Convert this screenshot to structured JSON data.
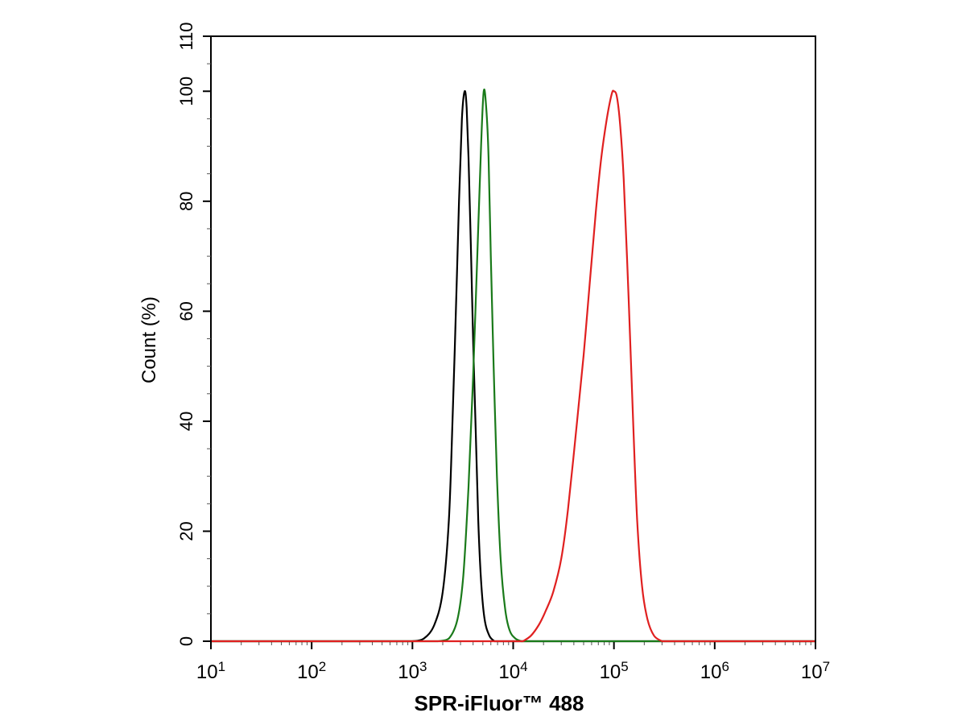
{
  "chart_data": {
    "type": "line",
    "title": "",
    "xlabel": "SPR-iFluor™ 488",
    "ylabel": "Count  (%)",
    "xscale": "log",
    "xlim": [
      10,
      10000000
    ],
    "ylim": [
      0,
      110
    ],
    "xticks": [
      {
        "value": 10,
        "base": "10",
        "exp": "1"
      },
      {
        "value": 100,
        "base": "10",
        "exp": "2"
      },
      {
        "value": 1000,
        "base": "10",
        "exp": "3"
      },
      {
        "value": 10000,
        "base": "10",
        "exp": "4"
      },
      {
        "value": 100000,
        "base": "10",
        "exp": "5"
      },
      {
        "value": 1000000,
        "base": "10",
        "exp": "6"
      },
      {
        "value": 10000000,
        "base": "10",
        "exp": "7"
      }
    ],
    "yticks": [
      {
        "value": 0,
        "label": "0"
      },
      {
        "value": 20,
        "label": "20"
      },
      {
        "value": 40,
        "label": "40"
      },
      {
        "value": 60,
        "label": "60"
      },
      {
        "value": 80,
        "label": "80"
      },
      {
        "value": 100,
        "label": "100"
      },
      {
        "value": 110,
        "label": "110"
      }
    ],
    "grid": false,
    "legend": "none",
    "series": [
      {
        "color": "#000000",
        "points": [
          [
            1000,
            0
          ],
          [
            1300,
            0.5
          ],
          [
            1650,
            3
          ],
          [
            2000,
            9
          ],
          [
            2300,
            22
          ],
          [
            2500,
            40
          ],
          [
            2700,
            60
          ],
          [
            2900,
            80
          ],
          [
            3100,
            95
          ],
          [
            3300,
            100
          ],
          [
            3450,
            97
          ],
          [
            3600,
            88
          ],
          [
            3800,
            72
          ],
          [
            4000,
            55
          ],
          [
            4250,
            38
          ],
          [
            4500,
            22
          ],
          [
            4800,
            11
          ],
          [
            5200,
            4
          ],
          [
            5800,
            1
          ],
          [
            6500,
            0
          ]
        ]
      },
      {
        "color": "#1a7a1a",
        "points": [
          [
            1800,
            0
          ],
          [
            2300,
            0.5
          ],
          [
            2800,
            4
          ],
          [
            3200,
            12
          ],
          [
            3600,
            28
          ],
          [
            4000,
            48
          ],
          [
            4400,
            70
          ],
          [
            4800,
            90
          ],
          [
            5100,
            100
          ],
          [
            5400,
            97
          ],
          [
            5700,
            88
          ],
          [
            6000,
            70
          ],
          [
            6400,
            50
          ],
          [
            6900,
            30
          ],
          [
            7500,
            15
          ],
          [
            8300,
            6
          ],
          [
            9200,
            2
          ],
          [
            10500,
            0.5
          ],
          [
            12000,
            0
          ]
        ]
      },
      {
        "color": "#e02020",
        "points": [
          [
            12500,
            0
          ],
          [
            15000,
            1
          ],
          [
            18000,
            3
          ],
          [
            21000,
            5.5
          ],
          [
            25000,
            9
          ],
          [
            30000,
            15
          ],
          [
            35000,
            24
          ],
          [
            42000,
            38
          ],
          [
            50000,
            52
          ],
          [
            58000,
            66
          ],
          [
            66000,
            78
          ],
          [
            75000,
            88
          ],
          [
            85000,
            95
          ],
          [
            95000,
            99.5
          ],
          [
            100000,
            100
          ],
          [
            107000,
            99
          ],
          [
            115000,
            94
          ],
          [
            125000,
            84
          ],
          [
            140000,
            62
          ],
          [
            155000,
            40
          ],
          [
            170000,
            22
          ],
          [
            190000,
            10
          ],
          [
            215000,
            4
          ],
          [
            250000,
            1
          ],
          [
            300000,
            0
          ]
        ]
      }
    ]
  }
}
